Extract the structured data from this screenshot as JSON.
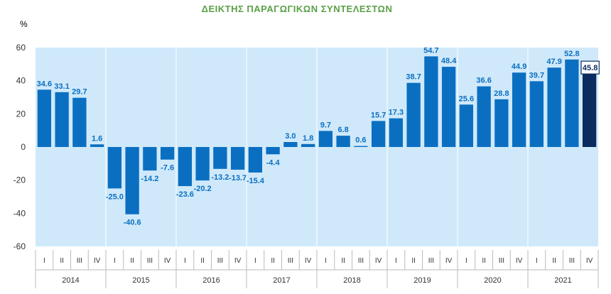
{
  "chart_data": {
    "type": "bar",
    "title": "ΔΕΙΚΤΗΣ ΠΑΡΑΓΩΓΙΚΩΝ ΣΥΝΤΕΛΕΣΤΩΝ",
    "ylabel": "%",
    "xlabel": "",
    "ylim": [
      -60,
      60
    ],
    "yticks": [
      60,
      40,
      20,
      0,
      -20,
      -40,
      -60
    ],
    "grid": false,
    "quarters": [
      "I",
      "II",
      "III",
      "IV",
      "I",
      "II",
      "III",
      "IV",
      "I",
      "II",
      "III",
      "IV",
      "I",
      "II",
      "III",
      "IV",
      "I",
      "II",
      "III",
      "IV",
      "I",
      "II",
      "III",
      "IV",
      "I",
      "II",
      "III",
      "IV",
      "I",
      "II",
      "III",
      "IV"
    ],
    "years": [
      "2014",
      "2015",
      "2016",
      "2017",
      "2018",
      "2019",
      "2020",
      "2021"
    ],
    "values": [
      34.6,
      33.1,
      29.7,
      1.6,
      -25.0,
      -40.6,
      -14.2,
      -7.6,
      -23.6,
      -20.2,
      -13.2,
      -13.7,
      -15.4,
      -4.4,
      3.0,
      1.8,
      9.7,
      6.8,
      0.6,
      15.7,
      17.3,
      38.7,
      54.7,
      48.4,
      25.6,
      36.6,
      28.8,
      44.9,
      39.7,
      47.9,
      52.8,
      45.8
    ],
    "labels": [
      "34.6",
      "33.1",
      "29.7",
      "1.6",
      "-25.0",
      "-40.6",
      "-14.2",
      "-7.6",
      "-23.6",
      "-20.2",
      "-13.2",
      "-13.7",
      "-15.4",
      "-4.4",
      "3.0",
      "1.8",
      "9.7",
      "6.8",
      "0.6",
      "15.7",
      "17.3",
      "38.7",
      "54.7",
      "48.4",
      "25.6",
      "36.6",
      "28.8",
      "44.9",
      "39.7",
      "47.9",
      "52.8",
      "45.8"
    ],
    "highlight_index": 31,
    "colors": {
      "bar": "#0b6fc1",
      "bar_highlight": "#0b2a5e",
      "plot_background": "#cfe9fb",
      "title": "#5aa047",
      "label": "#0b6fc1"
    }
  }
}
